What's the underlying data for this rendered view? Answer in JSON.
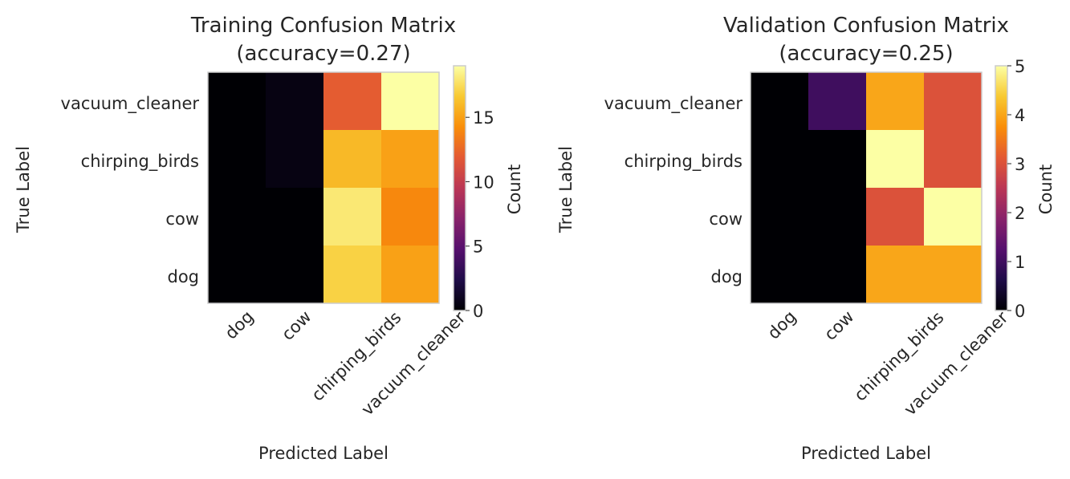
{
  "chart_data": [
    {
      "type": "heatmap",
      "title": "Training Confusion Matrix",
      "subtitle": "(accuracy=0.27)",
      "xlabel": "Predicted Label",
      "ylabel": "True Label",
      "x_categories": [
        "dog",
        "cow",
        "chirping_birds",
        "vacuum_cleaner"
      ],
      "y_categories": [
        "vacuum_cleaner",
        "chirping_birds",
        "cow",
        "dog"
      ],
      "values": [
        [
          0,
          0.5,
          12,
          19
        ],
        [
          0,
          0.5,
          16,
          15
        ],
        [
          0,
          0,
          18,
          14
        ],
        [
          0,
          0,
          17,
          15
        ]
      ],
      "colormap": "inferno",
      "colorbar": {
        "label": "Count",
        "range": [
          0,
          19
        ],
        "ticks": [
          "0",
          "5",
          "10",
          "15"
        ]
      },
      "grid": false
    },
    {
      "type": "heatmap",
      "title": "Validation Confusion Matrix",
      "subtitle": "(accuracy=0.25)",
      "xlabel": "Predicted Label",
      "ylabel": "True Label",
      "x_categories": [
        "dog",
        "cow",
        "chirping_birds",
        "vacuum_cleaner"
      ],
      "y_categories": [
        "vacuum_cleaner",
        "chirping_birds",
        "cow",
        "dog"
      ],
      "values": [
        [
          0,
          1,
          4,
          3
        ],
        [
          0,
          0,
          5,
          3
        ],
        [
          0,
          0,
          3,
          5
        ],
        [
          0,
          0,
          4,
          4
        ]
      ],
      "colormap": "inferno",
      "colorbar": {
        "label": "Count",
        "range": [
          0,
          5
        ],
        "ticks": [
          "0",
          "1",
          "2",
          "3",
          "4",
          "5"
        ]
      },
      "grid": false
    }
  ]
}
